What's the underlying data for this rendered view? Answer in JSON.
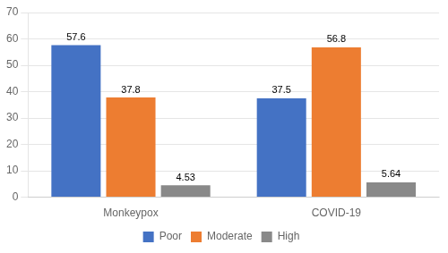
{
  "chart_data": {
    "type": "bar",
    "categories": [
      "Monkeypox",
      "COVID-19"
    ],
    "series": [
      {
        "name": "Poor",
        "color": "#4472C4",
        "values": [
          57.6,
          37.5
        ]
      },
      {
        "name": "Moderate",
        "color": "#ED7D31",
        "values": [
          37.8,
          56.8
        ]
      },
      {
        "name": "High",
        "color": "#898989",
        "values": [
          4.53,
          5.64
        ]
      }
    ],
    "ylim": [
      0,
      70
    ],
    "yticks": [
      0,
      10,
      20,
      30,
      40,
      50,
      60,
      70
    ],
    "grid": true,
    "legend": "bottom",
    "data_labels": true
  }
}
